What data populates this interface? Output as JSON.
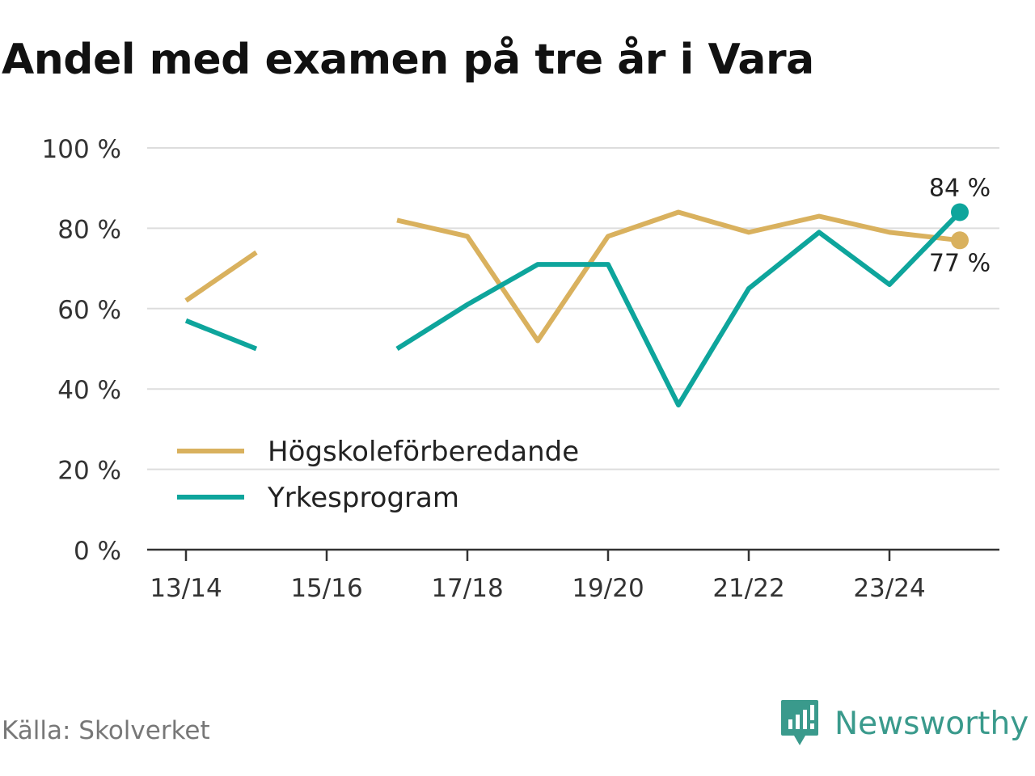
{
  "title": "Andel med examen på tre år i Vara",
  "source": "Källa: Skolverket",
  "brand": "Newsworthy",
  "colors": {
    "series1": "#d9b15e",
    "series2": "#0ea59c",
    "grid": "#dddddd",
    "axis": "#333333",
    "brand": "#3a9a8c"
  },
  "chart_data": {
    "type": "line",
    "title": "Andel med examen på tre år i Vara",
    "x": [
      "13/14",
      "14/15",
      "15/16",
      "16/17",
      "17/18",
      "18/19",
      "19/20",
      "20/21",
      "21/22",
      "22/23",
      "23/24",
      "24/25"
    ],
    "xtick_labels": [
      "13/14",
      "15/16",
      "17/18",
      "19/20",
      "21/22",
      "23/24"
    ],
    "ytick_labels": [
      "0 %",
      "20 %",
      "40 %",
      "60 %",
      "80 %",
      "100 %"
    ],
    "ylim": [
      0,
      100
    ],
    "yticks": [
      0,
      20,
      40,
      60,
      80,
      100
    ],
    "grid": true,
    "legend": "bottom-left",
    "series": [
      {
        "name": "Högskoleförberedande",
        "values": [
          62,
          74,
          null,
          82,
          78,
          52,
          78,
          84,
          79,
          83,
          79,
          77
        ],
        "end_label": "77 %"
      },
      {
        "name": "Yrkesprogram",
        "values": [
          57,
          50,
          null,
          50,
          61,
          71,
          71,
          36,
          65,
          79,
          66,
          84
        ],
        "end_label": "84 %"
      }
    ]
  }
}
